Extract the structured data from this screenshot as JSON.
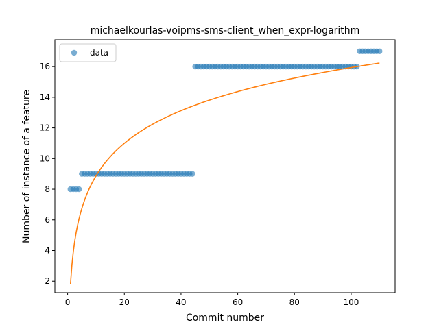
{
  "chart_data": {
    "type": "scatter",
    "title": "michaelkourlas-voipms-sms-client_when_expr-logarithm",
    "xlabel": "Commit number",
    "ylabel": "Number of instance of a feature",
    "xlim": [
      -4.5,
      115.5
    ],
    "ylim": [
      1.25,
      17.75
    ],
    "xticks": [
      0,
      20,
      40,
      60,
      80,
      100
    ],
    "yticks": [
      2,
      4,
      6,
      8,
      10,
      12,
      14,
      16
    ],
    "grid": false,
    "legend": {
      "position": "top-left",
      "entries": [
        "data"
      ]
    },
    "series": [
      {
        "name": "data",
        "kind": "scatter",
        "color": "#1f77b4",
        "opacity": 0.6,
        "segments": [
          {
            "x_from": 1,
            "x_to": 4,
            "y": 8
          },
          {
            "x_from": 5,
            "x_to": 44,
            "y": 9
          },
          {
            "x_from": 45,
            "x_to": 102,
            "y": 16
          },
          {
            "x_from": 103,
            "x_to": 110,
            "y": 17
          }
        ]
      },
      {
        "kind": "line",
        "color": "#ff7f0e",
        "model": "a + b*ln(x)",
        "a": 1.8,
        "b": 3.07,
        "x_range": [
          1,
          110
        ]
      }
    ]
  }
}
